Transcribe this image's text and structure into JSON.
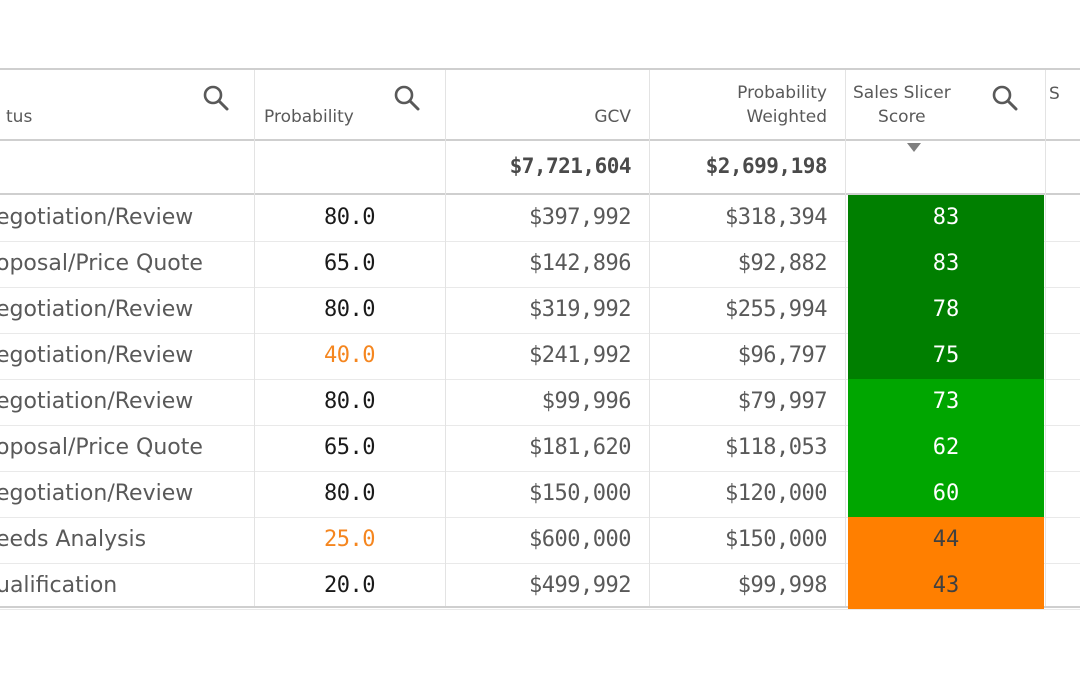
{
  "headers": {
    "status": "tus",
    "probability": "Probability",
    "gcv": "GCV",
    "probability_weighted": "Probability\nWeighted",
    "sales_slicer_score": "Sales Slicer\nScore",
    "next_col": "S"
  },
  "totals": {
    "gcv": "$7,721,604",
    "probability_weighted": "$2,699,198"
  },
  "icons": {
    "search": "search-icon",
    "sort": "sort-descending-icon"
  },
  "colors": {
    "dark_green": "#007f00",
    "green": "#00a600",
    "orange": "#ff7f00",
    "warn_text": "#f5861f"
  },
  "rows": [
    {
      "status": "egotiation/Review",
      "probability": "80.0",
      "gcv": "$397,992",
      "probability_weighted": "$318,394",
      "score": "83",
      "score_color": "#007f00",
      "score_text_color": "#ffffff",
      "prob_warn": false
    },
    {
      "status": "oposal/Price Quote",
      "probability": "65.0",
      "gcv": "$142,896",
      "probability_weighted": "$92,882",
      "score": "83",
      "score_color": "#007f00",
      "score_text_color": "#ffffff",
      "prob_warn": false
    },
    {
      "status": "egotiation/Review",
      "probability": "80.0",
      "gcv": "$319,992",
      "probability_weighted": "$255,994",
      "score": "78",
      "score_color": "#007f00",
      "score_text_color": "#ffffff",
      "prob_warn": false
    },
    {
      "status": "egotiation/Review",
      "probability": "40.0",
      "gcv": "$241,992",
      "probability_weighted": "$96,797",
      "score": "75",
      "score_color": "#007f00",
      "score_text_color": "#ffffff",
      "prob_warn": true
    },
    {
      "status": "egotiation/Review",
      "probability": "80.0",
      "gcv": "$99,996",
      "probability_weighted": "$79,997",
      "score": "73",
      "score_color": "#00a600",
      "score_text_color": "#ffffff",
      "prob_warn": false
    },
    {
      "status": "oposal/Price Quote",
      "probability": "65.0",
      "gcv": "$181,620",
      "probability_weighted": "$118,053",
      "score": "62",
      "score_color": "#00a600",
      "score_text_color": "#ffffff",
      "prob_warn": false
    },
    {
      "status": "egotiation/Review",
      "probability": "80.0",
      "gcv": "$150,000",
      "probability_weighted": "$120,000",
      "score": "60",
      "score_color": "#00a600",
      "score_text_color": "#ffffff",
      "prob_warn": false
    },
    {
      "status": "eeds Analysis",
      "probability": "25.0",
      "gcv": "$600,000",
      "probability_weighted": "$150,000",
      "score": "44",
      "score_color": "#ff7f00",
      "score_text_color": "#404040",
      "prob_warn": true
    },
    {
      "status": "ualification",
      "probability": "20.0",
      "gcv": "$499,992",
      "probability_weighted": "$99,998",
      "score": "43",
      "score_color": "#ff7f00",
      "score_text_color": "#404040",
      "prob_warn": false
    }
  ]
}
